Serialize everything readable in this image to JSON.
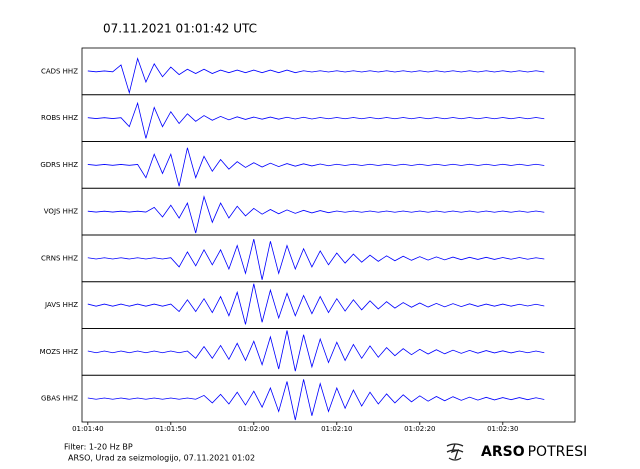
{
  "chart_data": {
    "type": "line",
    "title": "07.11.2021  01:01:42 UTC",
    "x": [
      40,
      41,
      42,
      43,
      44,
      45,
      46,
      47,
      48,
      49,
      50,
      51,
      52,
      53,
      54,
      55,
      56,
      57,
      58,
      59,
      60,
      61,
      62,
      63,
      64,
      65,
      66,
      67,
      68,
      69,
      70,
      71,
      72,
      73,
      74,
      75,
      76,
      77,
      78,
      79,
      80,
      81,
      82,
      83,
      84,
      85,
      86,
      87,
      88,
      89,
      90,
      91,
      92,
      93,
      94,
      95
    ],
    "xlim": [
      39.3,
      98.7
    ],
    "xticks": [
      {
        "value": 40,
        "label": "01:01:40"
      },
      {
        "value": 50,
        "label": "01:01:50"
      },
      {
        "value": 60,
        "label": "01:02:00"
      },
      {
        "value": 70,
        "label": "01:02:10"
      },
      {
        "value": 80,
        "label": "01:02:20"
      },
      {
        "value": 90,
        "label": "01:02:30"
      }
    ],
    "ylim": [
      -1,
      1
    ],
    "series": [
      {
        "name": "CADS HHZ",
        "color": "#0000ff",
        "values": [
          0.02,
          -0.02,
          0.02,
          -0.02,
          0.3,
          -1.0,
          0.6,
          -0.5,
          0.35,
          -0.25,
          0.2,
          -0.15,
          0.1,
          -0.1,
          0.1,
          -0.1,
          0.06,
          -0.06,
          0.06,
          -0.06,
          0.06,
          -0.06,
          0.06,
          -0.06,
          0.06,
          -0.06,
          0.03,
          -0.03,
          0.03,
          -0.03,
          0.03,
          -0.03,
          0.03,
          -0.03,
          0.03,
          -0.03,
          0.03,
          -0.03,
          0.03,
          -0.03,
          0.03,
          -0.03,
          0.03,
          -0.03,
          0.03,
          -0.03,
          0.03,
          -0.03,
          0.03,
          -0.03,
          0.03,
          -0.03,
          0.03,
          -0.03,
          0.03,
          -0.03
        ]
      },
      {
        "name": "ROBS HHZ",
        "color": "#0000ff",
        "values": [
          0.02,
          -0.02,
          0.02,
          -0.02,
          0.02,
          -0.4,
          0.7,
          -0.95,
          0.5,
          -0.4,
          0.3,
          -0.25,
          0.2,
          -0.15,
          0.12,
          -0.1,
          0.08,
          -0.08,
          0.06,
          -0.06,
          0.05,
          -0.05,
          0.05,
          -0.05,
          0.04,
          -0.04,
          0.04,
          -0.04,
          0.03,
          -0.03,
          0.03,
          -0.03,
          0.03,
          -0.03,
          0.03,
          -0.03,
          0.03,
          -0.03,
          0.03,
          -0.03,
          0.03,
          -0.03,
          0.03,
          -0.03,
          0.03,
          -0.03,
          0.03,
          -0.03,
          0.03,
          -0.03,
          0.03,
          -0.03,
          0.03,
          -0.03,
          0.03,
          -0.03
        ]
      },
      {
        "name": "GDRS HHZ",
        "color": "#0000ff",
        "values": [
          0.02,
          -0.02,
          0.02,
          -0.02,
          0.02,
          -0.02,
          0.02,
          -0.6,
          0.5,
          -0.4,
          0.5,
          -1.0,
          0.8,
          -0.6,
          0.4,
          -0.3,
          0.25,
          -0.2,
          0.15,
          -0.12,
          0.1,
          -0.1,
          0.08,
          -0.08,
          0.06,
          -0.06,
          0.05,
          -0.05,
          0.04,
          -0.04,
          0.03,
          -0.03,
          0.03,
          -0.03,
          0.03,
          -0.03,
          0.03,
          -0.03,
          0.03,
          -0.03,
          0.03,
          -0.03,
          0.03,
          -0.03,
          0.03,
          -0.03,
          0.03,
          -0.03,
          0.03,
          -0.03,
          0.03,
          -0.03,
          0.03,
          -0.03,
          0.03,
          -0.03
        ]
      },
      {
        "name": "VOJS HHZ",
        "color": "#0000ff",
        "values": [
          0.02,
          -0.02,
          0.02,
          -0.02,
          0.02,
          -0.02,
          0.02,
          -0.02,
          0.2,
          -0.25,
          0.3,
          -0.3,
          0.4,
          -1.0,
          0.7,
          -0.5,
          0.4,
          -0.3,
          0.25,
          -0.2,
          0.15,
          -0.12,
          0.1,
          -0.1,
          0.08,
          -0.08,
          0.06,
          -0.06,
          0.05,
          -0.05,
          0.03,
          -0.03,
          0.03,
          -0.03,
          0.03,
          -0.03,
          0.03,
          -0.03,
          0.03,
          -0.03,
          0.03,
          -0.03,
          0.03,
          -0.03,
          0.03,
          -0.03,
          0.03,
          -0.03,
          0.03,
          -0.03,
          0.03,
          -0.03,
          0.03,
          -0.03,
          0.03,
          -0.03
        ]
      },
      {
        "name": "CRNS HHZ",
        "color": "#0000ff",
        "values": [
          0.03,
          -0.03,
          0.03,
          -0.03,
          0.03,
          -0.03,
          0.03,
          -0.03,
          0.03,
          -0.03,
          0.03,
          -0.4,
          0.3,
          -0.35,
          0.4,
          -0.3,
          0.4,
          -0.5,
          0.6,
          -0.7,
          0.9,
          -1.0,
          0.8,
          -0.7,
          0.6,
          -0.5,
          0.45,
          -0.4,
          0.35,
          -0.3,
          0.25,
          -0.22,
          0.2,
          -0.18,
          0.15,
          -0.14,
          0.12,
          -0.11,
          0.1,
          -0.09,
          0.08,
          -0.08,
          0.07,
          -0.07,
          0.06,
          -0.06,
          0.05,
          -0.05,
          0.05,
          -0.05,
          0.04,
          -0.04,
          0.04,
          -0.04,
          0.03,
          -0.03
        ]
      },
      {
        "name": "JAVS HHZ",
        "color": "#0000ff",
        "values": [
          0.05,
          -0.05,
          0.05,
          -0.05,
          0.05,
          -0.05,
          0.05,
          -0.05,
          0.05,
          -0.05,
          0.05,
          -0.3,
          0.25,
          -0.3,
          0.3,
          -0.35,
          0.4,
          -0.5,
          0.6,
          -0.9,
          1.0,
          -0.8,
          0.7,
          -0.6,
          0.55,
          -0.5,
          0.45,
          -0.4,
          0.4,
          -0.35,
          0.3,
          -0.28,
          0.25,
          -0.22,
          0.2,
          -0.18,
          0.16,
          -0.14,
          0.12,
          -0.1,
          0.1,
          -0.09,
          0.08,
          -0.08,
          0.07,
          -0.07,
          0.06,
          -0.06,
          0.05,
          -0.05,
          0.05,
          -0.05,
          0.04,
          -0.04,
          0.04,
          -0.04
        ]
      },
      {
        "name": "MOZS HHZ",
        "color": "#0000ff",
        "values": [
          0.04,
          -0.04,
          0.04,
          -0.04,
          0.04,
          -0.04,
          0.04,
          -0.04,
          0.04,
          -0.04,
          0.04,
          -0.04,
          0.04,
          -0.3,
          0.25,
          -0.3,
          0.3,
          -0.35,
          0.4,
          -0.4,
          0.5,
          -0.6,
          0.7,
          -0.8,
          1.0,
          -0.9,
          0.8,
          -0.7,
          0.6,
          -0.5,
          0.45,
          -0.4,
          0.35,
          -0.3,
          0.28,
          -0.25,
          0.2,
          -0.18,
          0.15,
          -0.13,
          0.12,
          -0.1,
          0.1,
          -0.09,
          0.08,
          -0.07,
          0.07,
          -0.06,
          0.06,
          -0.05,
          0.05,
          -0.05,
          0.04,
          -0.04,
          0.04,
          -0.04
        ]
      },
      {
        "name": "GBAS HHZ",
        "color": "#0000ff",
        "values": [
          0.03,
          -0.03,
          0.03,
          -0.03,
          0.03,
          -0.03,
          0.03,
          -0.03,
          0.03,
          -0.03,
          0.03,
          -0.03,
          0.03,
          -0.03,
          0.15,
          -0.2,
          0.2,
          -0.25,
          0.3,
          -0.3,
          0.35,
          -0.4,
          0.5,
          -0.6,
          0.8,
          -1.0,
          0.9,
          -0.8,
          0.7,
          -0.6,
          0.5,
          -0.45,
          0.4,
          -0.35,
          0.3,
          -0.25,
          0.22,
          -0.2,
          0.18,
          -0.15,
          0.13,
          -0.12,
          0.1,
          -0.1,
          0.09,
          -0.08,
          0.07,
          -0.07,
          0.06,
          -0.06,
          0.05,
          -0.05,
          0.05,
          -0.05,
          0.04,
          -0.04
        ]
      }
    ],
    "annotations": [
      "Filter: 1-20 Hz BP",
      "ARSO, Urad za seizmologijo, 07.11.2021  01:02"
    ]
  },
  "logo": {
    "bold": "ARSO",
    "light": "POTRESI"
  }
}
